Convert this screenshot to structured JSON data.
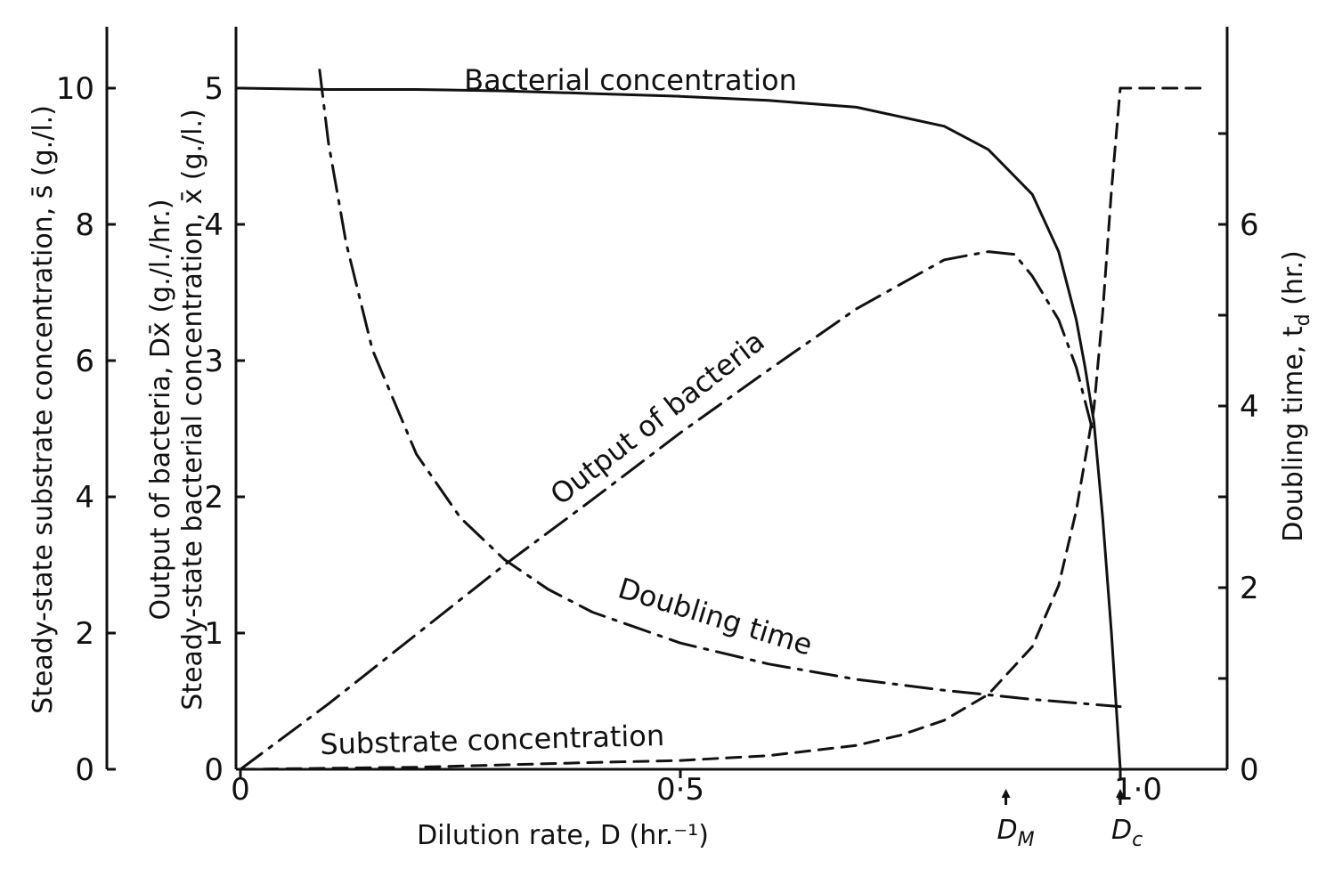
{
  "chart_data": {
    "type": "line",
    "title": "",
    "xlabel": "Dilution rate, D (hr.⁻¹)",
    "xlim": [
      0,
      1.1
    ],
    "x_ticks": [
      {
        "value": 0,
        "label": "0"
      },
      {
        "value": 0.5,
        "label": "0·5"
      },
      {
        "value": 1.0,
        "label": "1·0"
      }
    ],
    "x_markers": [
      {
        "value": 0.87,
        "label": "D",
        "subscript": "M"
      },
      {
        "value": 1.0,
        "label": "D",
        "subscript": "c"
      }
    ],
    "axes": {
      "substrate": {
        "label": "Steady-state substrate concentration, s̄ (g./l.)",
        "range": [
          0,
          11
        ],
        "ticks": [
          "0",
          "2",
          "4",
          "6",
          "8",
          "10"
        ]
      },
      "bacteria": {
        "label_top": "Output of bacteria, Dx̄ (g./l./hr.)",
        "label_bottom": "Steady-state bacterial concentration, x̄ (g./l.)",
        "range": [
          0,
          5.5
        ],
        "ticks": [
          "0",
          "1",
          "2",
          "3",
          "4",
          "5"
        ]
      },
      "doubling": {
        "label": "Doubling time, t",
        "label_subscript": "d",
        "label_suffix": " (hr.)",
        "range": [
          0,
          7.5
        ],
        "ticks": [
          "0",
          "2",
          "4",
          "6"
        ]
      }
    },
    "series": [
      {
        "name": "Bacterial concentration",
        "axis": "bacteria",
        "style": "solid",
        "x": [
          0,
          0.1,
          0.2,
          0.3,
          0.4,
          0.5,
          0.6,
          0.7,
          0.8,
          0.85,
          0.9,
          0.93,
          0.95,
          0.96,
          0.97,
          0.98,
          0.99,
          1.0
        ],
        "y": [
          5.0,
          4.99,
          4.99,
          4.98,
          4.96,
          4.94,
          4.91,
          4.86,
          4.72,
          4.55,
          4.22,
          3.8,
          3.3,
          2.95,
          2.55,
          1.85,
          1.0,
          0.0
        ]
      },
      {
        "name": "Output of bacteria",
        "axis": "bacteria",
        "style": "dashdot",
        "x": [
          0,
          0.1,
          0.2,
          0.3,
          0.4,
          0.5,
          0.6,
          0.7,
          0.8,
          0.85,
          0.88,
          0.9,
          0.93,
          0.95,
          0.97
        ],
        "y": [
          0,
          0.48,
          0.99,
          1.5,
          1.98,
          2.47,
          2.93,
          3.38,
          3.74,
          3.8,
          3.78,
          3.62,
          3.3,
          2.95,
          2.45
        ]
      },
      {
        "name": "Doubling time",
        "axis": "doubling",
        "style": "dashdot",
        "x": [
          0.09,
          0.1,
          0.12,
          0.15,
          0.2,
          0.25,
          0.3,
          0.35,
          0.4,
          0.5,
          0.6,
          0.7,
          0.8,
          0.9,
          1.0
        ],
        "y": [
          7.7,
          6.9,
          5.8,
          4.62,
          3.47,
          2.77,
          2.31,
          1.98,
          1.73,
          1.39,
          1.16,
          0.99,
          0.87,
          0.77,
          0.69
        ]
      },
      {
        "name": "Substrate concentration",
        "axis": "substrate",
        "style": "dashed",
        "x": [
          0,
          0.2,
          0.4,
          0.5,
          0.6,
          0.7,
          0.75,
          0.8,
          0.85,
          0.9,
          0.93,
          0.95,
          0.97,
          0.98,
          0.99,
          1.0,
          1.1
        ],
        "y": [
          0.0,
          0.03,
          0.1,
          0.13,
          0.2,
          0.35,
          0.5,
          0.72,
          1.1,
          1.8,
          2.7,
          3.8,
          5.3,
          6.7,
          8.5,
          10.0,
          10.0
        ]
      }
    ],
    "annotations": [
      "Bacterial concentration",
      "Output of bacteria",
      "Doubling time",
      "Substrate concentration"
    ]
  }
}
